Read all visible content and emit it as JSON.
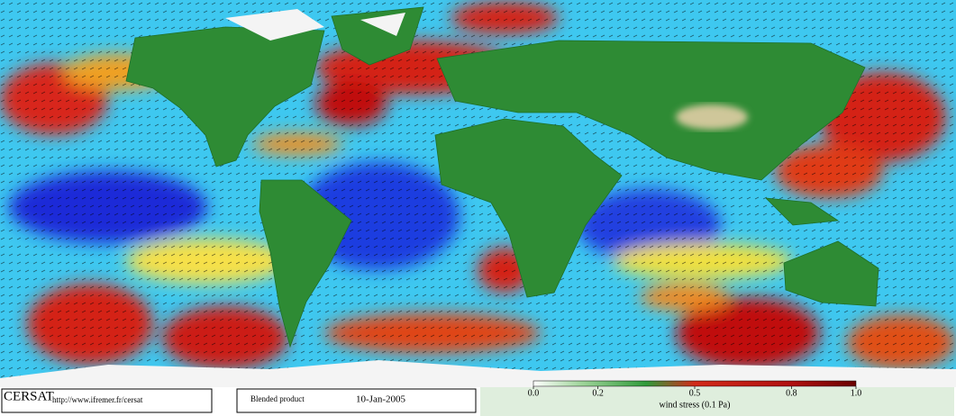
{
  "footer": {
    "logo": "CERSAT",
    "url": "http://www.ifremer.fr/cersat",
    "product": "Blended product",
    "date": "10-Jan-2005"
  },
  "colorbar": {
    "label": "wind stress (0.1 Pa)",
    "lim": [
      0,
      1
    ],
    "ticks": [
      {
        "value": 0,
        "label": "0.0"
      },
      0.2,
      0.5,
      0.8,
      {
        "value": 1,
        "label": "1.0"
      }
    ]
  }
}
